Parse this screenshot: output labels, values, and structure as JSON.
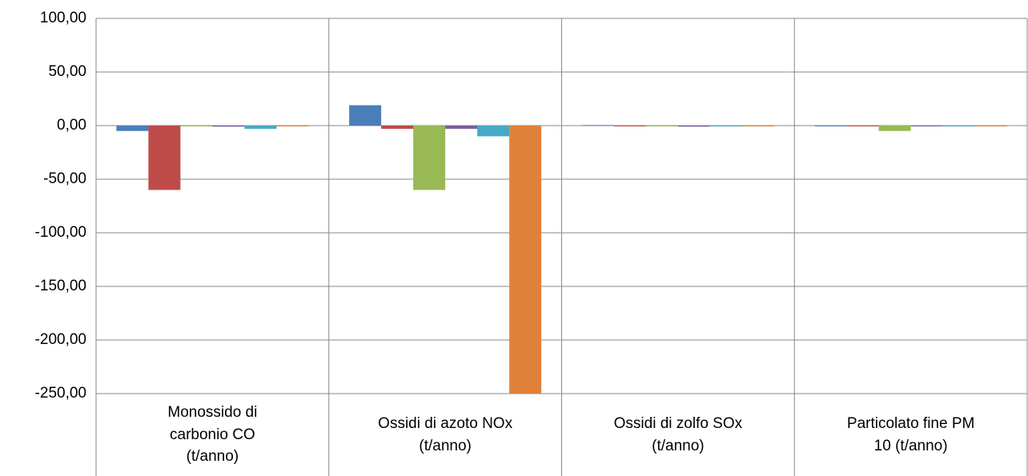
{
  "chart_data": {
    "type": "bar",
    "categories": [
      "Monossido di\ncarbonio CO\n(t/anno)",
      "Ossidi di azoto NOx\n(t/anno)",
      "Ossidi di zolfo SOx\n(t/anno)",
      "Particolato fine PM\n10  (t/anno)"
    ],
    "series": [
      {
        "color": "#4a7ebb",
        "values": [
          -5,
          19,
          0.5,
          0
        ]
      },
      {
        "color": "#be4b48",
        "values": [
          -60,
          -3,
          0,
          0
        ]
      },
      {
        "color": "#98b954",
        "values": [
          0,
          -60,
          0,
          -5
        ]
      },
      {
        "color": "#7d60a0",
        "values": [
          -1,
          -3,
          -1,
          0
        ]
      },
      {
        "color": "#46aac5",
        "values": [
          -3,
          -10,
          0,
          0
        ]
      },
      {
        "color": "#e0813a",
        "values": [
          0,
          -250,
          0,
          0
        ]
      }
    ],
    "ylim": [
      -250,
      100
    ],
    "yticks": [
      {
        "value": -250,
        "label": "-250,00"
      },
      {
        "value": -200,
        "label": "-200,00"
      },
      {
        "value": -150,
        "label": "-150,00"
      },
      {
        "value": -100,
        "label": "-100,00"
      },
      {
        "value": -50,
        "label": "-50,00"
      },
      {
        "value": 0,
        "label": "0,00"
      },
      {
        "value": 50,
        "label": "50,00"
      },
      {
        "value": 100,
        "label": "100,00"
      }
    ],
    "grid": true
  }
}
